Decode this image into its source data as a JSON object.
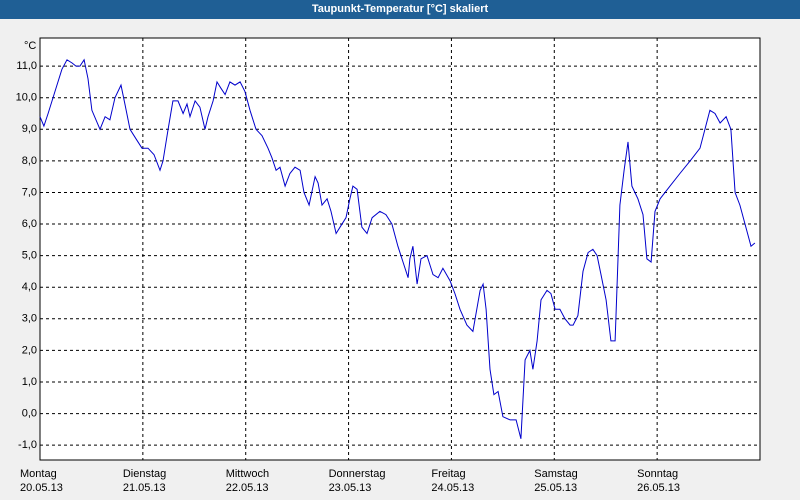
{
  "chart_data": {
    "type": "line",
    "title": "Taupunkt-Temperatur [°C] skaliert",
    "ylabel": "°C",
    "color": "#0000cc",
    "grid": true,
    "xlim": [
      0,
      168
    ],
    "xticks": [
      {
        "value": 0,
        "label": "Montag 20.05.13"
      },
      {
        "value": 24,
        "label": "Dienstag 21.05.13"
      },
      {
        "value": 48,
        "label": "Mittwoch 22.05.13"
      },
      {
        "value": 72,
        "label": "Donnerstag 23.05.13"
      },
      {
        "value": 96,
        "label": "Freitag 24.05.13"
      },
      {
        "value": 120,
        "label": "Samstag 25.05.13"
      },
      {
        "value": 144,
        "label": "Sonntag 26.05.13"
      }
    ],
    "ylim": [
      -1.47,
      11.89
    ],
    "yticks": [
      {
        "value": 11,
        "label": "11,0"
      },
      {
        "value": 10,
        "label": "10,0"
      },
      {
        "value": 9,
        "label": "9,0"
      },
      {
        "value": 8,
        "label": "8,0"
      },
      {
        "value": 7,
        "label": "7,0"
      },
      {
        "value": 6,
        "label": "6,0"
      },
      {
        "value": 5,
        "label": "5,0"
      },
      {
        "value": 4,
        "label": "4,0"
      },
      {
        "value": 3,
        "label": "3,0"
      },
      {
        "value": 2,
        "label": "2,0"
      },
      {
        "value": 1,
        "label": "1,0"
      },
      {
        "value": 0,
        "label": "0,0"
      },
      {
        "value": -1,
        "label": "-1,0"
      }
    ],
    "x": [
      0,
      0.9,
      1.9,
      3.5,
      5.1,
      6.3,
      7.5,
      8.4,
      9.3,
      10.3,
      11.2,
      12.1,
      14.0,
      15.2,
      16.3,
      17.5,
      18.9,
      19.8,
      21.0,
      22.4,
      23.8,
      25.2,
      26.6,
      28.0,
      28.7,
      29.9,
      31.0,
      32.2,
      33.4,
      34.3,
      35.0,
      36.2,
      37.3,
      38.5,
      39.2,
      40.4,
      41.3,
      42.2,
      43.2,
      44.3,
      45.5,
      46.7,
      47.8,
      49.0,
      50.4,
      51.8,
      53.2,
      54.1,
      55.1,
      56.0,
      57.2,
      58.3,
      59.5,
      60.7,
      61.6,
      62.8,
      64.2,
      64.9,
      65.8,
      67.0,
      67.9,
      69.1,
      70.0,
      71.4,
      72.3,
      73.0,
      74.0,
      75.1,
      76.3,
      77.5,
      79.3,
      80.7,
      82.1,
      83.5,
      84.7,
      85.9,
      86.3,
      87.0,
      88.0,
      88.9,
      90.3,
      91.7,
      92.9,
      94.0,
      95.7,
      96.8,
      98.0,
      99.6,
      101.0,
      102.7,
      103.4,
      104.1,
      105.0,
      105.9,
      106.9,
      108.0,
      109.7,
      111.1,
      112.2,
      113.2,
      114.3,
      115.0,
      116.0,
      116.9,
      118.3,
      119.2,
      120.2,
      121.3,
      122.5,
      123.7,
      124.4,
      125.5,
      126.7,
      127.9,
      129.0,
      130.0,
      130.9,
      132.1,
      133.2,
      134.2,
      135.3,
      136.3,
      137.2,
      138.1,
      139.5,
      140.7,
      141.6,
      142.6,
      143.5,
      144.7,
      147.0,
      149.3,
      151.7,
      154.0,
      156.3,
      157.5,
      158.7,
      160.1,
      161.2,
      162.2,
      163.3,
      164.5,
      165.9,
      166.8
    ],
    "values": [
      9.4,
      9.1,
      9.5,
      10.2,
      10.9,
      11.2,
      11.1,
      11.0,
      11.0,
      11.2,
      10.6,
      9.6,
      9.0,
      9.4,
      9.3,
      10.0,
      10.4,
      9.8,
      9.0,
      8.7,
      8.4,
      8.4,
      8.2,
      7.7,
      8.0,
      9.0,
      9.9,
      9.9,
      9.5,
      9.8,
      9.4,
      9.9,
      9.7,
      9.0,
      9.4,
      9.9,
      10.5,
      10.3,
      10.1,
      10.5,
      10.4,
      10.5,
      10.2,
      9.6,
      9.0,
      8.8,
      8.4,
      8.1,
      7.7,
      7.8,
      7.2,
      7.6,
      7.8,
      7.7,
      7.0,
      6.6,
      7.5,
      7.3,
      6.6,
      6.8,
      6.4,
      5.7,
      5.9,
      6.2,
      6.8,
      7.2,
      7.1,
      5.9,
      5.7,
      6.2,
      6.4,
      6.3,
      6.0,
      5.3,
      4.8,
      4.3,
      4.9,
      5.3,
      4.1,
      4.9,
      5.0,
      4.4,
      4.3,
      4.6,
      4.2,
      3.8,
      3.3,
      2.8,
      2.6,
      3.9,
      4.1,
      3.3,
      1.4,
      0.6,
      0.7,
      -0.1,
      -0.2,
      -0.2,
      -0.8,
      1.7,
      2.0,
      1.4,
      2.3,
      3.6,
      3.9,
      3.8,
      3.3,
      3.3,
      3.0,
      2.8,
      2.8,
      3.1,
      4.5,
      5.1,
      5.2,
      5.0,
      4.4,
      3.6,
      2.3,
      2.3,
      6.6,
      7.7,
      8.6,
      7.2,
      6.8,
      6.3,
      4.9,
      4.8,
      6.4,
      6.8,
      7.2,
      7.6,
      8.0,
      8.4,
      9.6,
      9.5,
      9.2,
      9.4,
      9.0,
      7.0,
      6.6,
      6.0,
      5.3,
      5.4
    ]
  }
}
